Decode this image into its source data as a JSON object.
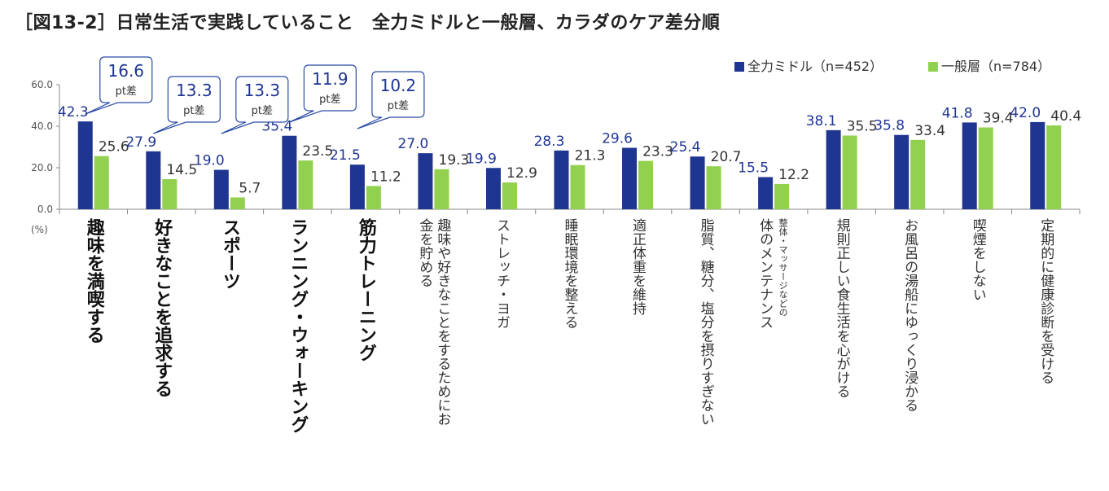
{
  "title": "［図13-2］日常生活で実践していること　全力ミドルと一般層、カラダのケア差分順",
  "chart_data": {
    "type": "bar",
    "unit_label": "(%)",
    "ylim": [
      0,
      60
    ],
    "yticks": [
      "0.0",
      "20.0",
      "40.0",
      "60.0"
    ],
    "series": [
      {
        "name": "全力ミドル（n=452）",
        "color": "#1f3592",
        "values": [
          42.3,
          27.9,
          19.0,
          35.4,
          21.5,
          27.0,
          19.9,
          28.3,
          29.6,
          25.4,
          15.5,
          38.1,
          35.8,
          41.8,
          42.0
        ]
      },
      {
        "name": "一般層（n=784）",
        "color": "#92d050",
        "values": [
          25.6,
          14.5,
          5.7,
          23.5,
          11.2,
          19.3,
          12.9,
          21.3,
          23.3,
          20.7,
          12.2,
          35.5,
          33.4,
          39.4,
          40.4
        ]
      }
    ],
    "categories": [
      "趣味を満喫する",
      "好きなことを追求する",
      "スポーツ",
      "ランニング・ウォーキング",
      "筋力トレーニング",
      "趣味や好きなことをするためにお金を貯める",
      "ストレッチ・ヨガ",
      "睡眠環境を整える",
      "適正体重を維持",
      "脂質、糖分、塩分を摂りすぎない",
      "整体・マッサージなどの体のメンテナンス",
      "規則正しい食生活を心がける",
      "お風呂の湯船にゆっくり浸かる",
      "喫煙をしない",
      "定期的に健康診断を受ける"
    ],
    "label_lines": [
      [
        "趣味を満喫する"
      ],
      [
        "好きなことを追求する"
      ],
      [
        "スポーツ"
      ],
      [
        "ランニング・ウォーキング"
      ],
      [
        "筋力トレーニング"
      ],
      [
        "趣味や好きなことをするためにお",
        "金を貯める"
      ],
      [
        "ストレッチ・ヨガ"
      ],
      [
        "睡眠環境を整える"
      ],
      [
        "適正体重を維持"
      ],
      [
        "脂質、糖分、塩分を摂りすぎない"
      ],
      [
        "整体・マッサージなどの",
        "体のメンテナンス"
      ],
      [
        "規則正しい食生活を心がける"
      ],
      [
        "お風呂の湯船にゆっくり浸かる"
      ],
      [
        "喫煙をしない"
      ],
      [
        "定期的に健康診断を受ける"
      ]
    ],
    "bold_categories": [
      0,
      1,
      2,
      3,
      4
    ],
    "callouts": [
      {
        "index": 0,
        "value": "16.6",
        "suffix": "pt差"
      },
      {
        "index": 1,
        "value": "13.3",
        "suffix": "pt差"
      },
      {
        "index": 2,
        "value": "13.3",
        "suffix": "pt差"
      },
      {
        "index": 3,
        "value": "11.9",
        "suffix": "pt差"
      },
      {
        "index": 4,
        "value": "10.2",
        "suffix": "pt差"
      }
    ]
  }
}
